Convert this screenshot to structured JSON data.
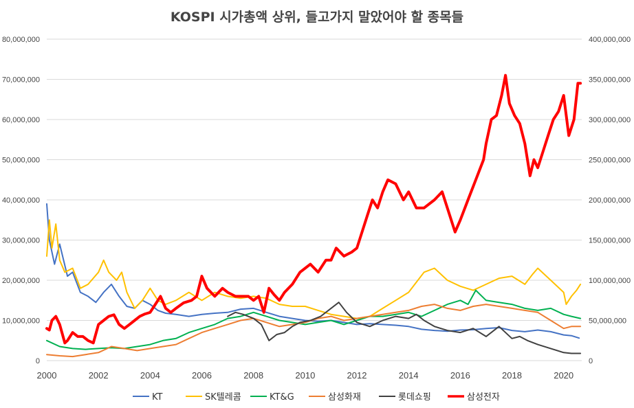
{
  "chart_data": {
    "type": "line",
    "title": "KOSPI 시가총액 상위, 들고가지 말았어야 할 종목들",
    "xlabel": "",
    "ylabel": "",
    "x_ticks": [
      "2000",
      "2002",
      "2004",
      "2006",
      "2008",
      "2010",
      "2012",
      "2014",
      "2016",
      "2018",
      "2020"
    ],
    "xlim": [
      2000,
      2020.7
    ],
    "left_axis": {
      "ylim": [
        0,
        80000000
      ],
      "tick_labels": [
        "0",
        "10,000,000",
        "20,000,000",
        "30,000,000",
        "40,000,000",
        "50,000,000",
        "60,000,000",
        "70,000,000",
        "80,000,000"
      ],
      "tick_values": [
        0,
        10000000,
        20000000,
        30000000,
        40000000,
        50000000,
        60000000,
        70000000,
        80000000
      ]
    },
    "right_axis": {
      "ylim": [
        0,
        400000000
      ],
      "tick_labels": [
        "0",
        "50,000,000",
        "100,000,000",
        "150,000,000",
        "200,000,000",
        "250,000,000",
        "300,000,000",
        "350,000,000",
        "400,000,000"
      ],
      "tick_values": [
        0,
        50000000,
        100000000,
        150000000,
        200000000,
        250000000,
        300000000,
        350000000,
        400000000
      ]
    },
    "grid": true,
    "legend_position": "bottom",
    "series": [
      {
        "name": "KT",
        "color": "#4472C4",
        "axis": "left",
        "width": 2,
        "x": [
          2000,
          2000.1,
          2000.3,
          2000.5,
          2000.8,
          2001,
          2001.3,
          2001.6,
          2001.9,
          2002.2,
          2002.5,
          2002.8,
          2003.1,
          2003.4,
          2003.7,
          2004,
          2004.3,
          2004.6,
          2005,
          2005.5,
          2006,
          2006.5,
          2007,
          2007.5,
          2008,
          2008.5,
          2009,
          2009.5,
          2010,
          2010.5,
          2011,
          2011.5,
          2012,
          2012.5,
          2013,
          2013.5,
          2014,
          2014.5,
          2015,
          2015.5,
          2016,
          2016.5,
          2017,
          2017.5,
          2018,
          2018.5,
          2019,
          2019.5,
          2020,
          2020.3,
          2020.6
        ],
        "y": [
          39000000,
          30000000,
          24000000,
          29000000,
          21000000,
          22000000,
          17000000,
          16000000,
          14500000,
          17000000,
          19000000,
          16000000,
          13500000,
          13000000,
          15000000,
          14000000,
          12500000,
          11800000,
          11500000,
          11000000,
          11500000,
          11800000,
          12000000,
          12800000,
          13000000,
          12000000,
          11000000,
          10500000,
          10000000,
          9800000,
          10000000,
          9500000,
          9000000,
          9200000,
          9000000,
          8800000,
          8500000,
          7800000,
          7500000,
          7300000,
          7600000,
          7700000,
          8000000,
          8200000,
          7500000,
          7200000,
          7600000,
          7200000,
          6400000,
          6200000,
          5600000
        ]
      },
      {
        "name": "SK텔레콤",
        "color": "#FFC000",
        "axis": "left",
        "width": 2,
        "x": [
          2000,
          2000.1,
          2000.2,
          2000.35,
          2000.5,
          2000.7,
          2001,
          2001.3,
          2001.6,
          2002,
          2002.2,
          2002.4,
          2002.7,
          2002.9,
          2003.1,
          2003.4,
          2003.7,
          2004,
          2004.3,
          2004.6,
          2005,
          2005.5,
          2006,
          2006.5,
          2007,
          2007.5,
          2008,
          2008.5,
          2009,
          2009.5,
          2010,
          2010.5,
          2011,
          2011.5,
          2012,
          2012.5,
          2013,
          2013.5,
          2014,
          2014.3,
          2014.6,
          2015,
          2015.5,
          2016,
          2016.5,
          2017,
          2017.5,
          2018,
          2018.5,
          2018.8,
          2019,
          2019.5,
          2020,
          2020.1,
          2020.3,
          2020.5,
          2020.65
        ],
        "y": [
          26000000,
          35000000,
          28000000,
          34000000,
          25000000,
          22000000,
          23000000,
          18000000,
          19000000,
          22000000,
          25000000,
          22000000,
          20000000,
          22000000,
          17000000,
          13000000,
          15000000,
          18000000,
          15000000,
          14000000,
          15000000,
          17000000,
          15000000,
          17000000,
          16000000,
          15500000,
          16000000,
          15500000,
          14000000,
          13500000,
          13500000,
          12500000,
          11500000,
          11000000,
          10500000,
          11000000,
          13000000,
          15000000,
          17000000,
          19500000,
          22000000,
          23000000,
          20000000,
          18500000,
          17500000,
          19000000,
          20500000,
          21000000,
          19000000,
          21500000,
          23000000,
          20000000,
          17000000,
          14000000,
          16000000,
          17500000,
          19000000
        ]
      },
      {
        "name": "KT&G",
        "color": "#00B050",
        "axis": "left",
        "width": 2,
        "x": [
          2000,
          2000.5,
          2001,
          2001.5,
          2002,
          2002.5,
          2003,
          2003.5,
          2004,
          2004.5,
          2005,
          2005.5,
          2006,
          2006.5,
          2007,
          2007.5,
          2008,
          2008.5,
          2009,
          2009.5,
          2010,
          2010.5,
          2011,
          2011.5,
          2012,
          2012.5,
          2013,
          2013.5,
          2014,
          2014.5,
          2015,
          2015.5,
          2016,
          2016.3,
          2016.6,
          2017,
          2017.5,
          2018,
          2018.5,
          2019,
          2019.5,
          2020,
          2020.3,
          2020.65
        ],
        "y": [
          5000000,
          3500000,
          3000000,
          2800000,
          3000000,
          3200000,
          3000000,
          3500000,
          4000000,
          5000000,
          5500000,
          7000000,
          8000000,
          9000000,
          10500000,
          11000000,
          12000000,
          11000000,
          10000000,
          9500000,
          9000000,
          9500000,
          10000000,
          9000000,
          10000000,
          11000000,
          11000000,
          11500000,
          12000000,
          11000000,
          12500000,
          14000000,
          15000000,
          14000000,
          17500000,
          15000000,
          14500000,
          14000000,
          13000000,
          12500000,
          13000000,
          11500000,
          11000000,
          10500000
        ]
      },
      {
        "name": "삼성화재",
        "color": "#ED7D31",
        "axis": "left",
        "width": 2,
        "x": [
          2000,
          2000.5,
          2001,
          2001.5,
          2002,
          2002.5,
          2003,
          2003.5,
          2004,
          2004.5,
          2005,
          2005.5,
          2006,
          2006.5,
          2007,
          2007.5,
          2008,
          2008.5,
          2009,
          2009.5,
          2010,
          2010.5,
          2011,
          2011.5,
          2012,
          2012.5,
          2013,
          2013.5,
          2014,
          2014.5,
          2015,
          2015.5,
          2016,
          2016.5,
          2017,
          2017.5,
          2018,
          2018.5,
          2019,
          2019.5,
          2020,
          2020.3,
          2020.65
        ],
        "y": [
          1500000,
          1200000,
          1000000,
          1500000,
          2000000,
          3500000,
          3000000,
          2500000,
          3000000,
          3500000,
          4000000,
          5500000,
          7000000,
          8000000,
          9000000,
          10000000,
          10500000,
          9500000,
          8500000,
          9000000,
          9500000,
          10500000,
          11000000,
          10000000,
          10500000,
          11000000,
          11500000,
          12000000,
          12500000,
          13500000,
          14000000,
          13000000,
          12500000,
          13500000,
          14000000,
          13500000,
          13000000,
          12500000,
          12000000,
          10000000,
          8000000,
          8500000,
          8500000
        ]
      },
      {
        "name": "롯데쇼핑",
        "color": "#404040",
        "axis": "left",
        "width": 2,
        "x": [
          2007,
          2007.3,
          2007.6,
          2008,
          2008.3,
          2008.6,
          2008.9,
          2009.2,
          2009.5,
          2009.8,
          2010.2,
          2010.6,
          2011,
          2011.3,
          2011.6,
          2012,
          2012.5,
          2013,
          2013.5,
          2014,
          2014.3,
          2014.6,
          2015,
          2015.5,
          2016,
          2016.5,
          2017,
          2017.5,
          2018,
          2018.3,
          2018.6,
          2019,
          2019.5,
          2020,
          2020.3,
          2020.65
        ],
        "y": [
          11000000,
          12000000,
          11500000,
          10500000,
          9000000,
          5000000,
          6500000,
          7000000,
          8500000,
          9500000,
          10000000,
          11000000,
          13000000,
          14500000,
          12000000,
          9500000,
          8500000,
          10000000,
          11000000,
          10500000,
          11500000,
          10000000,
          8500000,
          7500000,
          7000000,
          8000000,
          6000000,
          8500000,
          5500000,
          6000000,
          5000000,
          4000000,
          3000000,
          2000000,
          1800000,
          1800000
        ]
      },
      {
        "name": "삼성전자",
        "color": "#FF0000",
        "axis": "right",
        "width": 4,
        "x": [
          2000,
          2000.1,
          2000.2,
          2000.35,
          2000.5,
          2000.7,
          2000.8,
          2001,
          2001.2,
          2001.4,
          2001.6,
          2001.8,
          2002,
          2002.2,
          2002.4,
          2002.6,
          2002.8,
          2003,
          2003.2,
          2003.4,
          2003.6,
          2003.8,
          2004,
          2004.2,
          2004.4,
          2004.6,
          2004.8,
          2005,
          2005.3,
          2005.6,
          2005.8,
          2006,
          2006.2,
          2006.5,
          2006.8,
          2007,
          2007.3,
          2007.5,
          2007.8,
          2008,
          2008.2,
          2008.4,
          2008.6,
          2008.8,
          2009,
          2009.2,
          2009.5,
          2009.8,
          2010,
          2010.2,
          2010.5,
          2010.8,
          2011,
          2011.2,
          2011.5,
          2011.8,
          2012,
          2012.2,
          2012.4,
          2012.6,
          2012.8,
          2013,
          2013.2,
          2013.5,
          2013.8,
          2014,
          2014.3,
          2014.6,
          2015,
          2015.3,
          2015.6,
          2015.8,
          2016,
          2016.3,
          2016.6,
          2016.9,
          2017,
          2017.2,
          2017.4,
          2017.6,
          2017.75,
          2017.9,
          2018.1,
          2018.3,
          2018.5,
          2018.7,
          2018.85,
          2019,
          2019.2,
          2019.4,
          2019.6,
          2019.8,
          2020,
          2020.2,
          2020.4,
          2020.55,
          2020.65
        ],
        "y": [
          40000000,
          38000000,
          50000000,
          55000000,
          45000000,
          22000000,
          25000000,
          35000000,
          30000000,
          30000000,
          25000000,
          22000000,
          45000000,
          50000000,
          55000000,
          57000000,
          45000000,
          40000000,
          45000000,
          50000000,
          55000000,
          58000000,
          60000000,
          70000000,
          80000000,
          65000000,
          60000000,
          65000000,
          72000000,
          75000000,
          80000000,
          105000000,
          90000000,
          80000000,
          90000000,
          85000000,
          80000000,
          80000000,
          80000000,
          75000000,
          80000000,
          60000000,
          90000000,
          82000000,
          75000000,
          85000000,
          95000000,
          110000000,
          115000000,
          120000000,
          110000000,
          125000000,
          125000000,
          140000000,
          130000000,
          135000000,
          140000000,
          160000000,
          180000000,
          200000000,
          190000000,
          210000000,
          225000000,
          220000000,
          200000000,
          210000000,
          190000000,
          190000000,
          200000000,
          210000000,
          180000000,
          160000000,
          175000000,
          200000000,
          225000000,
          250000000,
          270000000,
          300000000,
          305000000,
          330000000,
          355000000,
          320000000,
          305000000,
          295000000,
          270000000,
          230000000,
          250000000,
          240000000,
          260000000,
          280000000,
          300000000,
          310000000,
          330000000,
          280000000,
          300000000,
          345000000,
          345000000
        ]
      }
    ]
  }
}
